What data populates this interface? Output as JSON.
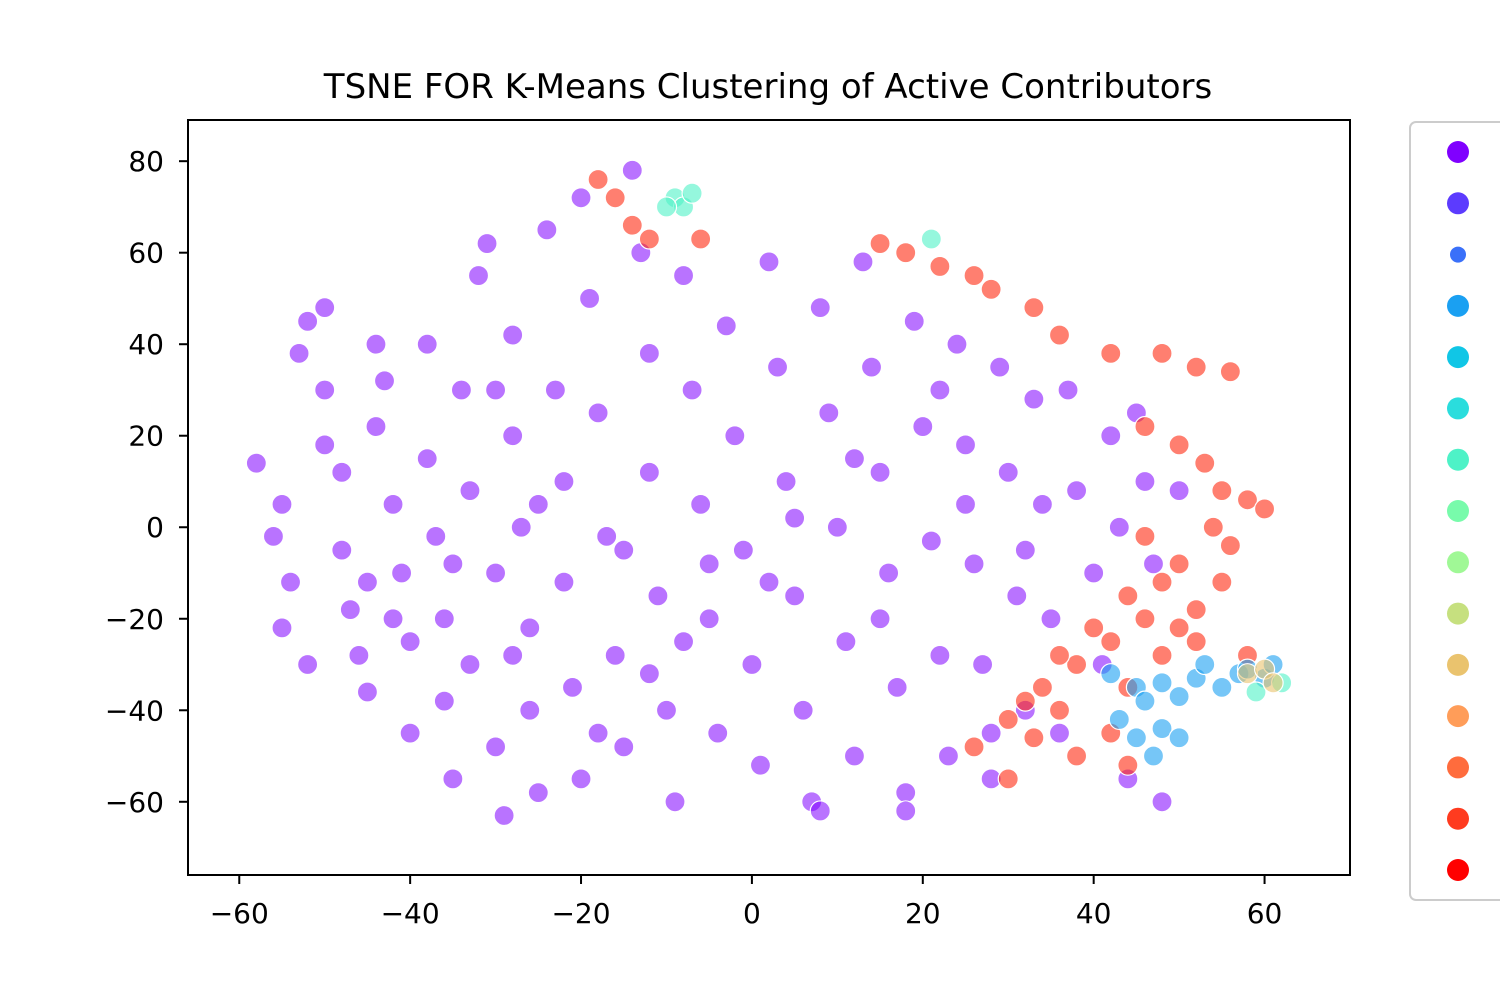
{
  "chart_data": {
    "type": "scatter",
    "title": "TSNE FOR K-Means Clustering of Active Contributors",
    "xlabel": "",
    "ylabel": "",
    "xlim": [
      -66,
      70
    ],
    "ylim": [
      -76,
      89
    ],
    "x_ticks": [
      -60,
      -40,
      -20,
      0,
      20,
      40,
      60
    ],
    "y_ticks": [
      -60,
      -40,
      -20,
      0,
      20,
      40,
      60,
      80
    ],
    "x_tick_labels": [
      "−60",
      "−40",
      "−20",
      "0",
      "20",
      "40",
      "60"
    ],
    "y_tick_labels": [
      "−60",
      "−40",
      "−20",
      "0",
      "20",
      "40",
      "60",
      "80"
    ],
    "grid": false,
    "legend": {
      "placement": "outside-right",
      "entries": [
        {
          "color": "#8000ff"
        },
        {
          "color": "#5c3bfe"
        },
        {
          "color": "#3a70f9"
        },
        {
          "color": "#1aa0f2"
        },
        {
          "color": "#10c6e6"
        },
        {
          "color": "#2adddd"
        },
        {
          "color": "#4ef2c7"
        },
        {
          "color": "#78fbab"
        },
        {
          "color": "#a0f896"
        },
        {
          "color": "#c6e07f"
        },
        {
          "color": "#eac36e"
        },
        {
          "color": "#ff9d59"
        },
        {
          "color": "#ff6c3d"
        },
        {
          "color": "#ff3b1f"
        },
        {
          "color": "#ff0000"
        }
      ]
    },
    "series": [
      {
        "color": "#8000ff",
        "description_points": "main cluster",
        "points": [
          [
            -58,
            14
          ],
          [
            -55,
            5
          ],
          [
            -56,
            -2
          ],
          [
            -54,
            -12
          ],
          [
            -55,
            -22
          ],
          [
            -52,
            -30
          ],
          [
            -53,
            38
          ],
          [
            -52,
            45
          ],
          [
            -50,
            48
          ],
          [
            -50,
            30
          ],
          [
            -48,
            12
          ],
          [
            -48,
            -5
          ],
          [
            -47,
            -18
          ],
          [
            -46,
            -28
          ],
          [
            -45,
            -36
          ],
          [
            -44,
            22
          ],
          [
            -43,
            32
          ],
          [
            -42,
            5
          ],
          [
            -41,
            -10
          ],
          [
            -40,
            -25
          ],
          [
            -40,
            -45
          ],
          [
            -38,
            40
          ],
          [
            -38,
            15
          ],
          [
            -37,
            -2
          ],
          [
            -36,
            -20
          ],
          [
            -36,
            -38
          ],
          [
            -35,
            -55
          ],
          [
            -34,
            30
          ],
          [
            -33,
            8
          ],
          [
            -33,
            -30
          ],
          [
            -32,
            55
          ],
          [
            -31,
            62
          ],
          [
            -30,
            -10
          ],
          [
            -30,
            -48
          ],
          [
            -29,
            -63
          ],
          [
            -28,
            42
          ],
          [
            -28,
            20
          ],
          [
            -27,
            0
          ],
          [
            -26,
            -22
          ],
          [
            -26,
            -40
          ],
          [
            -25,
            -58
          ],
          [
            -24,
            65
          ],
          [
            -23,
            30
          ],
          [
            -22,
            10
          ],
          [
            -22,
            -12
          ],
          [
            -21,
            -35
          ],
          [
            -20,
            -55
          ],
          [
            -20,
            72
          ],
          [
            -19,
            50
          ],
          [
            -18,
            25
          ],
          [
            -17,
            -2
          ],
          [
            -16,
            -28
          ],
          [
            -15,
            -48
          ],
          [
            -14,
            78
          ],
          [
            -13,
            60
          ],
          [
            -12,
            38
          ],
          [
            -12,
            12
          ],
          [
            -11,
            -15
          ],
          [
            -10,
            -40
          ],
          [
            -9,
            -60
          ],
          [
            -8,
            55
          ],
          [
            -7,
            30
          ],
          [
            -6,
            5
          ],
          [
            -5,
            -20
          ],
          [
            -4,
            -45
          ],
          [
            -3,
            44
          ],
          [
            -2,
            20
          ],
          [
            -1,
            -5
          ],
          [
            0,
            -30
          ],
          [
            1,
            -52
          ],
          [
            2,
            58
          ],
          [
            3,
            35
          ],
          [
            4,
            10
          ],
          [
            5,
            -15
          ],
          [
            6,
            -40
          ],
          [
            7,
            -60
          ],
          [
            8,
            48
          ],
          [
            9,
            25
          ],
          [
            10,
            0
          ],
          [
            11,
            -25
          ],
          [
            12,
            -50
          ],
          [
            13,
            58
          ],
          [
            14,
            35
          ],
          [
            15,
            12
          ],
          [
            16,
            -10
          ],
          [
            17,
            -35
          ],
          [
            18,
            -58
          ],
          [
            19,
            45
          ],
          [
            20,
            22
          ],
          [
            21,
            -3
          ],
          [
            22,
            -28
          ],
          [
            23,
            -50
          ],
          [
            24,
            40
          ],
          [
            25,
            18
          ],
          [
            26,
            -8
          ],
          [
            27,
            -30
          ],
          [
            28,
            -55
          ],
          [
            29,
            35
          ],
          [
            30,
            12
          ],
          [
            31,
            -15
          ],
          [
            32,
            -40
          ],
          [
            33,
            28
          ],
          [
            34,
            5
          ],
          [
            35,
            -20
          ],
          [
            36,
            -45
          ],
          [
            37,
            30
          ],
          [
            38,
            8
          ],
          [
            40,
            -10
          ],
          [
            41,
            -30
          ],
          [
            42,
            20
          ],
          [
            43,
            0
          ],
          [
            44,
            -55
          ],
          [
            45,
            25
          ],
          [
            46,
            10
          ],
          [
            47,
            -8
          ],
          [
            48,
            -60
          ],
          [
            50,
            8
          ],
          [
            -45,
            -12
          ],
          [
            -35,
            -8
          ],
          [
            -25,
            5
          ],
          [
            -15,
            -5
          ],
          [
            -5,
            -8
          ],
          [
            5,
            2
          ],
          [
            15,
            -20
          ],
          [
            25,
            5
          ],
          [
            -50,
            18
          ],
          [
            -42,
            -20
          ],
          [
            -30,
            30
          ],
          [
            -18,
            -45
          ],
          [
            -8,
            -25
          ],
          [
            2,
            -12
          ],
          [
            12,
            15
          ],
          [
            22,
            30
          ],
          [
            32,
            -5
          ],
          [
            -44,
            40
          ],
          [
            -28,
            -28
          ],
          [
            -12,
            -32
          ],
          [
            8,
            -62
          ],
          [
            18,
            -62
          ],
          [
            28,
            -45
          ]
        ]
      },
      {
        "color": "#ff2a10",
        "description_points": "secondary cluster",
        "points": [
          [
            -16,
            72
          ],
          [
            -14,
            66
          ],
          [
            -12,
            63
          ],
          [
            -18,
            76
          ],
          [
            -6,
            63
          ],
          [
            15,
            62
          ],
          [
            18,
            60
          ],
          [
            22,
            57
          ],
          [
            26,
            55
          ],
          [
            28,
            52
          ],
          [
            33,
            48
          ],
          [
            36,
            42
          ],
          [
            42,
            38
          ],
          [
            48,
            38
          ],
          [
            52,
            35
          ],
          [
            56,
            34
          ],
          [
            46,
            22
          ],
          [
            50,
            18
          ],
          [
            53,
            14
          ],
          [
            55,
            8
          ],
          [
            58,
            6
          ],
          [
            60,
            4
          ],
          [
            54,
            0
          ],
          [
            56,
            -4
          ],
          [
            50,
            -8
          ],
          [
            44,
            -15
          ],
          [
            46,
            -20
          ],
          [
            50,
            -22
          ],
          [
            52,
            -25
          ],
          [
            48,
            -28
          ],
          [
            42,
            -25
          ],
          [
            40,
            -22
          ],
          [
            38,
            -30
          ],
          [
            36,
            -28
          ],
          [
            34,
            -35
          ],
          [
            32,
            -38
          ],
          [
            30,
            -42
          ],
          [
            33,
            -46
          ],
          [
            36,
            -40
          ],
          [
            38,
            -50
          ],
          [
            42,
            -45
          ],
          [
            44,
            -52
          ],
          [
            30,
            -55
          ],
          [
            26,
            -48
          ],
          [
            58,
            -28
          ],
          [
            55,
            -12
          ],
          [
            48,
            -12
          ],
          [
            46,
            -2
          ],
          [
            52,
            -18
          ],
          [
            44,
            -35
          ]
        ]
      },
      {
        "color": "#1aa0f2",
        "description_points": "small cluster",
        "points": [
          [
            42,
            -32
          ],
          [
            45,
            -35
          ],
          [
            48,
            -34
          ],
          [
            50,
            -37
          ],
          [
            52,
            -33
          ],
          [
            55,
            -35
          ],
          [
            57,
            -32
          ],
          [
            46,
            -38
          ],
          [
            43,
            -42
          ],
          [
            45,
            -46
          ],
          [
            48,
            -44
          ],
          [
            50,
            -46
          ],
          [
            47,
            -50
          ],
          [
            53,
            -30
          ],
          [
            58,
            -31
          ],
          [
            60,
            -33
          ],
          [
            61,
            -30
          ]
        ]
      },
      {
        "color": "#4ef2c7",
        "description_points": "small cluster",
        "points": [
          [
            -9,
            72
          ],
          [
            -8,
            70
          ],
          [
            -7,
            73
          ],
          [
            -10,
            70
          ],
          [
            21,
            63
          ],
          [
            62,
            -34
          ],
          [
            59,
            -36
          ]
        ]
      },
      {
        "color": "#eac36e",
        "description_points": "small cluster",
        "points": [
          [
            58,
            -32
          ],
          [
            60,
            -31
          ],
          [
            61,
            -34
          ]
        ]
      }
    ]
  }
}
